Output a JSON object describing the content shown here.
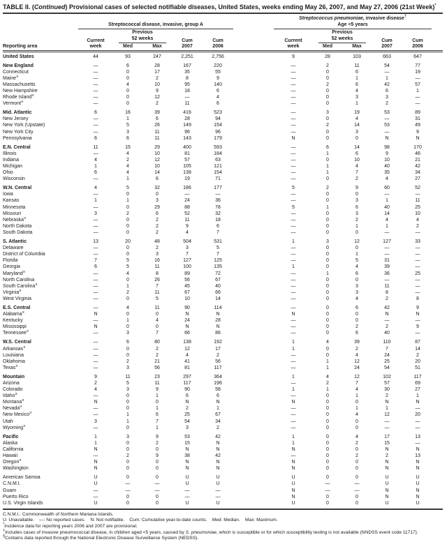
{
  "title": {
    "p1": "TABLE II. (",
    "continued": "Continued",
    "p2": ") Provisional cases of selected notifiable diseases, United States, weeks ending May 26, 2007, and May 27, 2006 (21st Week)",
    "sup": "*"
  },
  "header": {
    "reporting_area": "Reporting area",
    "group1_title": "Streptococcal disease, invasive, group A",
    "group2_italic": "Streptococcus pneumoniae",
    "group2_rest": ", invasive disease",
    "group2_sup": "†",
    "group2_line2": "Age <5 years",
    "current_week": "Current\nweek",
    "previous_52_weeks": "Previous\n52 weeks",
    "med": "Med",
    "max": "Max",
    "cum2007": "Cum\n2007",
    "cum2006": "Cum\n2006"
  },
  "rows": [
    {
      "a": "United States",
      "b": 1,
      "v": [
        "44",
        "93",
        "247",
        "2,251",
        "2,756",
        "9",
        "28",
        "103",
        "663",
        "647"
      ]
    },
    {
      "a": "New England",
      "b": 1,
      "g": 1,
      "v": [
        "—",
        "6",
        "28",
        "167",
        "220",
        "—",
        "2",
        "11",
        "54",
        "77"
      ]
    },
    {
      "a": "Connecticut",
      "v": [
        "—",
        "0",
        "17",
        "35",
        "55",
        "—",
        "0",
        "6",
        "—",
        "19"
      ]
    },
    {
      "a": "Maine",
      "m": "§",
      "v": [
        "—",
        "0",
        "2",
        "8",
        "9",
        "—",
        "0",
        "1",
        "1",
        "—"
      ]
    },
    {
      "a": "Massachusetts",
      "v": [
        "—",
        "4",
        "10",
        "95",
        "140",
        "—",
        "2",
        "6",
        "42",
        "57"
      ]
    },
    {
      "a": "New Hampshire",
      "v": [
        "—",
        "0",
        "9",
        "18",
        "6",
        "—",
        "0",
        "4",
        "6",
        "1"
      ]
    },
    {
      "a": "Rhode Island",
      "m": "§",
      "v": [
        "—",
        "0",
        "12",
        "—",
        "4",
        "—",
        "0",
        "3",
        "3",
        "—"
      ]
    },
    {
      "a": "Vermont",
      "m": "§",
      "v": [
        "—",
        "0",
        "2",
        "11",
        "6",
        "—",
        "0",
        "1",
        "2",
        "—"
      ]
    },
    {
      "a": "Mid. Atlantic",
      "b": 1,
      "g": 1,
      "v": [
        "6",
        "16",
        "39",
        "416",
        "523",
        "—",
        "3",
        "19",
        "53",
        "89"
      ]
    },
    {
      "a": "New Jersey",
      "v": [
        "—",
        "1",
        "6",
        "28",
        "94",
        "—",
        "0",
        "4",
        "—",
        "31"
      ]
    },
    {
      "a": "New York (Upstate)",
      "v": [
        "—",
        "5",
        "26",
        "149",
        "154",
        "—",
        "2",
        "14",
        "53",
        "49"
      ]
    },
    {
      "a": "New York City",
      "v": [
        "—",
        "3",
        "11",
        "96",
        "96",
        "—",
        "0",
        "3",
        "—",
        "9"
      ]
    },
    {
      "a": "Pennsylvania",
      "v": [
        "6",
        "6",
        "11",
        "143",
        "179",
        "N",
        "0",
        "0",
        "N",
        "N"
      ]
    },
    {
      "a": "E.N. Central",
      "b": 1,
      "g": 1,
      "v": [
        "11",
        "15",
        "29",
        "400",
        "593",
        "—",
        "6",
        "14",
        "98",
        "170"
      ]
    },
    {
      "a": "Illinois",
      "v": [
        "—",
        "4",
        "10",
        "81",
        "184",
        "—",
        "1",
        "6",
        "9",
        "46"
      ]
    },
    {
      "a": "Indiana",
      "v": [
        "4",
        "2",
        "12",
        "57",
        "63",
        "—",
        "0",
        "10",
        "10",
        "21"
      ]
    },
    {
      "a": "Michigan",
      "v": [
        "1",
        "4",
        "10",
        "105",
        "121",
        "—",
        "1",
        "4",
        "40",
        "42"
      ]
    },
    {
      "a": "Ohio",
      "v": [
        "6",
        "4",
        "14",
        "138",
        "154",
        "—",
        "1",
        "7",
        "35",
        "34"
      ]
    },
    {
      "a": "Wisconsin",
      "v": [
        "—",
        "1",
        "6",
        "19",
        "71",
        "—",
        "0",
        "2",
        "4",
        "27"
      ]
    },
    {
      "a": "W.N. Central",
      "b": 1,
      "g": 1,
      "v": [
        "4",
        "5",
        "32",
        "186",
        "177",
        "5",
        "2",
        "9",
        "60",
        "52"
      ]
    },
    {
      "a": "Iowa",
      "v": [
        "—",
        "0",
        "0",
        "—",
        "—",
        "—",
        "0",
        "0",
        "—",
        "—"
      ]
    },
    {
      "a": "Kansas",
      "v": [
        "1",
        "1",
        "3",
        "24",
        "36",
        "—",
        "0",
        "3",
        "1",
        "11"
      ]
    },
    {
      "a": "Minnesota",
      "v": [
        "—",
        "0",
        "29",
        "88",
        "78",
        "5",
        "1",
        "6",
        "40",
        "25"
      ]
    },
    {
      "a": "Missouri",
      "v": [
        "3",
        "2",
        "6",
        "52",
        "32",
        "—",
        "0",
        "3",
        "14",
        "10"
      ]
    },
    {
      "a": "Nebraska",
      "m": "§",
      "v": [
        "—",
        "0",
        "2",
        "11",
        "18",
        "—",
        "0",
        "2",
        "4",
        "4"
      ]
    },
    {
      "a": "North Dakota",
      "v": [
        "—",
        "0",
        "2",
        "9",
        "6",
        "—",
        "0",
        "1",
        "1",
        "2"
      ]
    },
    {
      "a": "South Dakota",
      "v": [
        "—",
        "0",
        "2",
        "4",
        "7",
        "—",
        "0",
        "0",
        "—",
        "—"
      ]
    },
    {
      "a": "S. Atlantic",
      "b": 1,
      "g": 1,
      "v": [
        "13",
        "20",
        "48",
        "504",
        "531",
        "1",
        "3",
        "12",
        "127",
        "33"
      ]
    },
    {
      "a": "Delaware",
      "v": [
        "—",
        "0",
        "2",
        "3",
        "5",
        "—",
        "0",
        "0",
        "—",
        "—"
      ]
    },
    {
      "a": "District of Columbia",
      "v": [
        "—",
        "0",
        "3",
        "7",
        "7",
        "—",
        "0",
        "1",
        "—",
        "—"
      ]
    },
    {
      "a": "Florida",
      "v": [
        "7",
        "5",
        "16",
        "127",
        "125",
        "—",
        "0",
        "5",
        "31",
        "—"
      ]
    },
    {
      "a": "Georgia",
      "v": [
        "6",
        "5",
        "11",
        "100",
        "135",
        "1",
        "0",
        "4",
        "39",
        "—"
      ]
    },
    {
      "a": "Maryland",
      "m": "§",
      "v": [
        "—",
        "4",
        "8",
        "89",
        "72",
        "—",
        "1",
        "6",
        "36",
        "25"
      ]
    },
    {
      "a": "North Carolina",
      "v": [
        "—",
        "0",
        "26",
        "56",
        "67",
        "—",
        "0",
        "0",
        "—",
        "—"
      ]
    },
    {
      "a": "South Carolina",
      "m": "§",
      "v": [
        "—",
        "1",
        "7",
        "45",
        "40",
        "—",
        "0",
        "3",
        "11",
        "—"
      ]
    },
    {
      "a": "Virginia",
      "m": "§",
      "v": [
        "—",
        "2",
        "11",
        "67",
        "66",
        "—",
        "0",
        "3",
        "8",
        "—"
      ]
    },
    {
      "a": "West Virginia",
      "v": [
        "—",
        "0",
        "5",
        "10",
        "14",
        "—",
        "0",
        "4",
        "2",
        "8"
      ]
    },
    {
      "a": "E.S. Central",
      "b": 1,
      "g": 1,
      "v": [
        "—",
        "4",
        "11",
        "90",
        "114",
        "—",
        "0",
        "6",
        "42",
        "9"
      ]
    },
    {
      "a": "Alabama",
      "m": "§",
      "v": [
        "N",
        "0",
        "0",
        "N",
        "N",
        "N",
        "0",
        "0",
        "N",
        "N"
      ]
    },
    {
      "a": "Kentucky",
      "v": [
        "—",
        "1",
        "4",
        "24",
        "28",
        "—",
        "0",
        "0",
        "—",
        "—"
      ]
    },
    {
      "a": "Mississippi",
      "v": [
        "N",
        "0",
        "0",
        "N",
        "N",
        "—",
        "0",
        "2",
        "2",
        "9"
      ]
    },
    {
      "a": "Tennessee",
      "m": "§",
      "v": [
        "—",
        "3",
        "7",
        "66",
        "86",
        "—",
        "0",
        "6",
        "40",
        "—"
      ]
    },
    {
      "a": "W.S. Central",
      "b": 1,
      "g": 1,
      "v": [
        "—",
        "6",
        "80",
        "138",
        "192",
        "1",
        "4",
        "39",
        "110",
        "87"
      ]
    },
    {
      "a": "Arkansas",
      "m": "§",
      "v": [
        "—",
        "0",
        "2",
        "12",
        "17",
        "1",
        "0",
        "2",
        "7",
        "14"
      ]
    },
    {
      "a": "Louisiana",
      "v": [
        "—",
        "0",
        "2",
        "4",
        "2",
        "—",
        "0",
        "4",
        "24",
        "2"
      ]
    },
    {
      "a": "Oklahoma",
      "v": [
        "—",
        "2",
        "21",
        "41",
        "56",
        "—",
        "1",
        "12",
        "25",
        "20"
      ]
    },
    {
      "a": "Texas",
      "m": "§",
      "v": [
        "—",
        "3",
        "56",
        "81",
        "117",
        "—",
        "1",
        "24",
        "54",
        "51"
      ]
    },
    {
      "a": "Mountain",
      "b": 1,
      "g": 1,
      "v": [
        "9",
        "11",
        "23",
        "297",
        "364",
        "1",
        "4",
        "12",
        "102",
        "117"
      ]
    },
    {
      "a": "Arizona",
      "v": [
        "2",
        "5",
        "11",
        "117",
        "196",
        "—",
        "2",
        "7",
        "57",
        "69"
      ]
    },
    {
      "a": "Colorado",
      "v": [
        "4",
        "3",
        "9",
        "90",
        "58",
        "1",
        "1",
        "4",
        "30",
        "27"
      ]
    },
    {
      "a": "Idaho",
      "m": "§",
      "v": [
        "—",
        "0",
        "1",
        "6",
        "6",
        "—",
        "0",
        "1",
        "2",
        "1"
      ]
    },
    {
      "a": "Montana",
      "m": "§",
      "v": [
        "N",
        "0",
        "0",
        "N",
        "N",
        "N",
        "0",
        "0",
        "N",
        "N"
      ]
    },
    {
      "a": "Nevada",
      "m": "§",
      "v": [
        "—",
        "0",
        "1",
        "2",
        "1",
        "—",
        "0",
        "1",
        "1",
        "—"
      ]
    },
    {
      "a": "New Mexico",
      "m": "§",
      "v": [
        "—",
        "1",
        "6",
        "25",
        "67",
        "—",
        "0",
        "4",
        "12",
        "20"
      ]
    },
    {
      "a": "Utah",
      "v": [
        "3",
        "1",
        "7",
        "54",
        "34",
        "—",
        "0",
        "0",
        "—",
        "—"
      ]
    },
    {
      "a": "Wyoming",
      "m": "§",
      "v": [
        "—",
        "0",
        "1",
        "3",
        "2",
        "—",
        "0",
        "0",
        "—",
        "—"
      ]
    },
    {
      "a": "Pacific",
      "b": 1,
      "g": 1,
      "v": [
        "1",
        "3",
        "9",
        "53",
        "42",
        "1",
        "0",
        "4",
        "17",
        "13"
      ]
    },
    {
      "a": "Alaska",
      "v": [
        "1",
        "0",
        "2",
        "15",
        "N",
        "1",
        "0",
        "2",
        "15",
        "—"
      ]
    },
    {
      "a": "California",
      "v": [
        "N",
        "0",
        "0",
        "N",
        "N",
        "N",
        "0",
        "0",
        "N",
        "N"
      ]
    },
    {
      "a": "Hawaii",
      "v": [
        "—",
        "2",
        "9",
        "38",
        "42",
        "—",
        "0",
        "2",
        "2",
        "13"
      ]
    },
    {
      "a": "Oregon",
      "m": "§",
      "v": [
        "N",
        "0",
        "0",
        "N",
        "N",
        "N",
        "0",
        "0",
        "N",
        "N"
      ]
    },
    {
      "a": "Washington",
      "v": [
        "N",
        "0",
        "0",
        "N",
        "N",
        "N",
        "0",
        "0",
        "N",
        "N"
      ]
    },
    {
      "a": "American Samoa",
      "g": 1,
      "v": [
        "U",
        "0",
        "0",
        "U",
        "U",
        "U",
        "0",
        "0",
        "U",
        "U"
      ]
    },
    {
      "a": "C.N.M.I.",
      "v": [
        "U",
        "—",
        "—",
        "U",
        "U",
        "U",
        "—",
        "—",
        "U",
        "U"
      ]
    },
    {
      "a": "Guam",
      "v": [
        "—",
        "—",
        "—",
        "—",
        "—",
        "N",
        "—",
        "—",
        "N",
        "N"
      ]
    },
    {
      "a": "Puerto Rico",
      "v": [
        "—",
        "0",
        "0",
        "—",
        "—",
        "N",
        "0",
        "0",
        "N",
        "N"
      ]
    },
    {
      "a": "U.S. Virgin Islands",
      "v": [
        "U",
        "0",
        "0",
        "U",
        "U",
        "U",
        "0",
        "0",
        "U",
        "U"
      ]
    }
  ],
  "footnotes": {
    "cnmi": "C.N.M.I.: Commonwealth of Northern Mariana Islands.",
    "legend": "U: Unavailable.    —: No reported cases.    N: Not notifiable.    Cum: Cumulative year-to-date counts.    Med: Median.    Max: Maximum.",
    "star_mark": "*",
    "star_text": "Incidence data for reporting years 2006 and 2007 are provisional.",
    "dagger_mark": "†",
    "dagger_pre": "Includes cases of invasive pneumococcal disease, in children aged <5 years, caused by ",
    "dagger_italic": "S. pneumoniae",
    "dagger_post": ", which is susceptible or for which susceptibility testing is not available (NNDSS event code 11717).",
    "section_mark": "§",
    "section_text": "Contains data reported through the National Electronic Disease Surveillance System (NEDSS)."
  }
}
